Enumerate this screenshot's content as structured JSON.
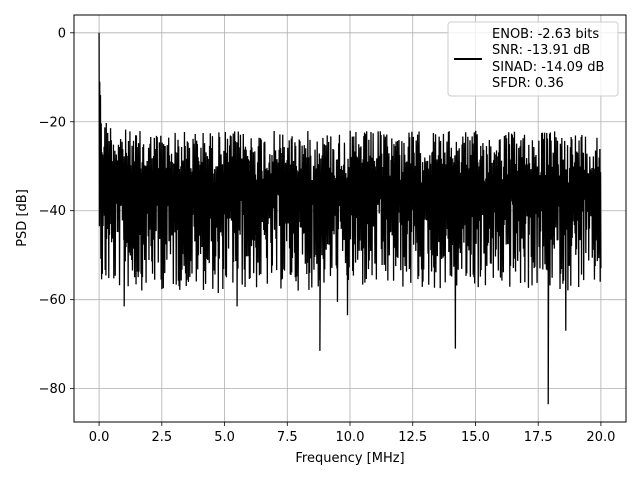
{
  "chart_data": {
    "type": "line",
    "title": "",
    "xlabel": "Frequency [MHz]",
    "ylabel": "PSD [dB]",
    "xlim": [
      -1.0,
      21.0
    ],
    "ylim": [
      -87.5,
      4.0
    ],
    "grid": true,
    "x_ticks": [
      0.0,
      2.5,
      5.0,
      7.5,
      10.0,
      12.5,
      15.0,
      17.5,
      20.0
    ],
    "x_tick_labels": [
      "0.0",
      "2.5",
      "5.0",
      "7.5",
      "10.0",
      "12.5",
      "15.0",
      "17.5",
      "20.0"
    ],
    "y_ticks": [
      0,
      -20,
      -40,
      -60,
      -80
    ],
    "y_tick_labels": [
      "0",
      "−20",
      "−40",
      "−60",
      "−80"
    ],
    "legend_position": "top-right",
    "legend_lines": [
      "ENOB: -2.63 bits",
      "SNR: -13.91 dB",
      "SINAD: -14.09 dB",
      "SFDR: 0.36"
    ],
    "series": [
      {
        "color": "#000000",
        "x_range": [
          0.0,
          20.0
        ],
        "num_points": 1400,
        "peak": {
          "x": 0.0,
          "y": 0.0
        },
        "noise_floor_mean_db": -32,
        "upper_envelope_db": -22,
        "lower_envelope_db": -52,
        "deep_dips": [
          {
            "x": 1.0,
            "y": -61.5
          },
          {
            "x": 4.75,
            "y": -58.5
          },
          {
            "x": 5.5,
            "y": -61.5
          },
          {
            "x": 8.8,
            "y": -71.5
          },
          {
            "x": 9.5,
            "y": -60.5
          },
          {
            "x": 9.9,
            "y": -63.5
          },
          {
            "x": 14.2,
            "y": -71.0
          },
          {
            "x": 17.9,
            "y": -83.5
          },
          {
            "x": 18.6,
            "y": -67.0
          }
        ]
      }
    ]
  }
}
